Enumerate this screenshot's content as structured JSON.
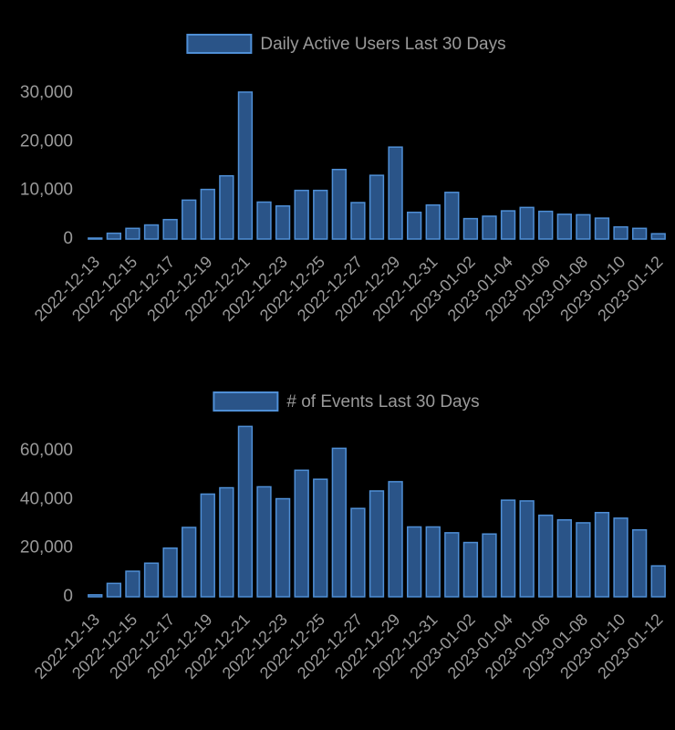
{
  "chart_data": [
    {
      "type": "bar",
      "legend_position": "top",
      "grid": false,
      "colors": {
        "fill": "#2a5488",
        "border": "#4f8fd6",
        "text": "#9a9a9a",
        "background": "#000000"
      },
      "series": [
        {
          "name": "Daily Active Users Last 30 Days",
          "values": [
            200,
            1200,
            2200,
            2900,
            4000,
            8000,
            10200,
            13000,
            30200,
            7600,
            6800,
            10000,
            10000,
            14300,
            7500,
            13100,
            18900,
            5500,
            7000,
            9600,
            4200,
            4700,
            5800,
            6500,
            5700,
            5100,
            5000,
            4300,
            2500,
            2200,
            1100
          ]
        }
      ],
      "categories": [
        "2022-12-13",
        "2022-12-14",
        "2022-12-15",
        "2022-12-16",
        "2022-12-17",
        "2022-12-18",
        "2022-12-19",
        "2022-12-20",
        "2022-12-21",
        "2022-12-22",
        "2022-12-23",
        "2022-12-24",
        "2022-12-25",
        "2022-12-26",
        "2022-12-27",
        "2022-12-28",
        "2022-12-29",
        "2022-12-30",
        "2022-12-31",
        "2023-01-01",
        "2023-01-02",
        "2023-01-03",
        "2023-01-04",
        "2023-01-05",
        "2023-01-06",
        "2023-01-07",
        "2023-01-08",
        "2023-01-09",
        "2023-01-10",
        "2023-01-11",
        "2023-01-12"
      ],
      "tick_labels": [
        "2022-12-13",
        "2022-12-15",
        "2022-12-17",
        "2022-12-19",
        "2022-12-21",
        "2022-12-23",
        "2022-12-25",
        "2022-12-27",
        "2022-12-29",
        "2022-12-31",
        "2023-01-02",
        "2023-01-04",
        "2023-01-06",
        "2023-01-08",
        "2023-01-10",
        "2023-01-12"
      ],
      "yticks": [
        "0",
        "10,000",
        "20,000",
        "30,000"
      ],
      "ylim": [
        0,
        30200
      ]
    },
    {
      "type": "bar",
      "legend_position": "top",
      "grid": false,
      "colors": {
        "fill": "#2a5488",
        "border": "#4f8fd6",
        "text": "#9a9a9a",
        "background": "#000000"
      },
      "series": [
        {
          "name": "# of Events Last 30 Days",
          "values": [
            800,
            5500,
            10500,
            13800,
            20000,
            28500,
            42200,
            44800,
            70000,
            45200,
            40300,
            52000,
            48300,
            61000,
            36300,
            43500,
            47300,
            28700,
            28700,
            26300,
            22300,
            25800,
            39700,
            39400,
            33500,
            31600,
            30400,
            34600,
            32300,
            27500,
            12700
          ]
        }
      ],
      "categories": [
        "2022-12-13",
        "2022-12-14",
        "2022-12-15",
        "2022-12-16",
        "2022-12-17",
        "2022-12-18",
        "2022-12-19",
        "2022-12-20",
        "2022-12-21",
        "2022-12-22",
        "2022-12-23",
        "2022-12-24",
        "2022-12-25",
        "2022-12-26",
        "2022-12-27",
        "2022-12-28",
        "2022-12-29",
        "2022-12-30",
        "2022-12-31",
        "2023-01-01",
        "2023-01-02",
        "2023-01-03",
        "2023-01-04",
        "2023-01-05",
        "2023-01-06",
        "2023-01-07",
        "2023-01-08",
        "2023-01-09",
        "2023-01-10",
        "2023-01-11",
        "2023-01-12"
      ],
      "tick_labels": [
        "2022-12-13",
        "2022-12-15",
        "2022-12-17",
        "2022-12-19",
        "2022-12-21",
        "2022-12-23",
        "2022-12-25",
        "2022-12-27",
        "2022-12-29",
        "2022-12-31",
        "2023-01-02",
        "2023-01-04",
        "2023-01-06",
        "2023-01-08",
        "2023-01-10",
        "2023-01-12"
      ],
      "yticks": [
        "0",
        "20,000",
        "40,000",
        "60,000"
      ],
      "ylim": [
        0,
        70000
      ]
    }
  ]
}
